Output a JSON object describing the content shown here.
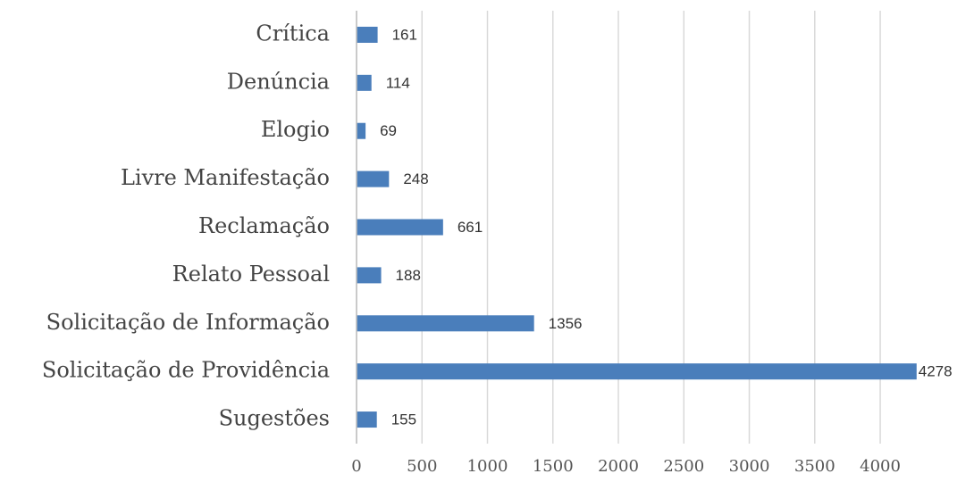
{
  "chart_data": {
    "type": "barh",
    "categories": [
      "Crítica",
      "Denúncia",
      "Elogio",
      "Livre Manifestação",
      "Reclamação",
      "Relato Pessoal",
      "Solicitação de Informação",
      "Solicitação de Providência",
      "Sugestões"
    ],
    "values": [
      161,
      114,
      69,
      248,
      661,
      188,
      1356,
      4278,
      155
    ],
    "color": "#4a7ebb",
    "xlim": [
      0,
      4300
    ],
    "xticks": [
      0,
      500,
      1000,
      1500,
      2000,
      2500,
      3000,
      3500,
      4000
    ],
    "grid": true
  }
}
